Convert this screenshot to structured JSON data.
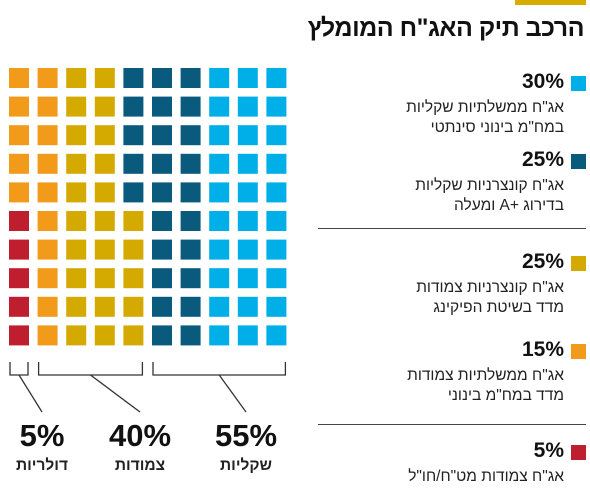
{
  "title": "הרכב תיק האג\"ח המומלץ",
  "colors": {
    "accent": "#d6ad00",
    "categories": [
      "#00aee8",
      "#0a5a7e",
      "#d4a900",
      "#f29b1b",
      "#bf1e2e"
    ]
  },
  "legend": [
    {
      "pct": "30%",
      "lines": [
        "אג\"ח ממשלתיות שקליות",
        "במח\"מ בינוני סינתטי"
      ],
      "color": "#00aee8"
    },
    {
      "pct": "25%",
      "lines": [
        "אג\"ח קונצרניות שקליות",
        "בדירוג +A ומעלה"
      ],
      "color": "#0a5a7e"
    },
    {
      "pct": "25%",
      "lines": [
        "אג\"ח קונצרניות צמודות",
        "מדד בשיטת הפיקינג"
      ],
      "color": "#d4a900"
    },
    {
      "pct": "15%",
      "lines": [
        "אג\"ח ממשלתיות צמודות",
        "מדד במח\"מ בינוני"
      ],
      "color": "#f29b1b"
    },
    {
      "pct": "5%",
      "lines": [
        "אג\"ח צמודות מט\"ח/חו\"ל"
      ],
      "color": "#bf1e2e"
    }
  ],
  "groups": [
    {
      "pct": "55%",
      "name": "שקליות"
    },
    {
      "pct": "40%",
      "name": "צמודות"
    },
    {
      "pct": "5%",
      "name": "דולריות"
    }
  ],
  "chart_data": {
    "type": "waffle",
    "grid": {
      "rows": 10,
      "cols": 10
    },
    "unit_value": 1,
    "series": [
      {
        "name": "אג\"ח ממשלתיות שקליות במח\"מ בינוני סינתטי",
        "value": 30
      },
      {
        "name": "אג\"ח קונצרניות שקליות בדירוג +A ומעלה",
        "value": 25
      },
      {
        "name": "אג\"ח קונצרניות צמודות מדד בשיטת הפיקינג",
        "value": 25
      },
      {
        "name": "אג\"ח ממשלתיות צמודות מדד במח\"מ בינוני",
        "value": 15
      },
      {
        "name": "אג\"ח צמודות מט\"ח/חו\"ל",
        "value": 5
      }
    ],
    "groups": [
      {
        "name": "שקליות",
        "value": 55
      },
      {
        "name": "צמודות",
        "value": 40
      },
      {
        "name": "דולריות",
        "value": 5
      }
    ]
  }
}
